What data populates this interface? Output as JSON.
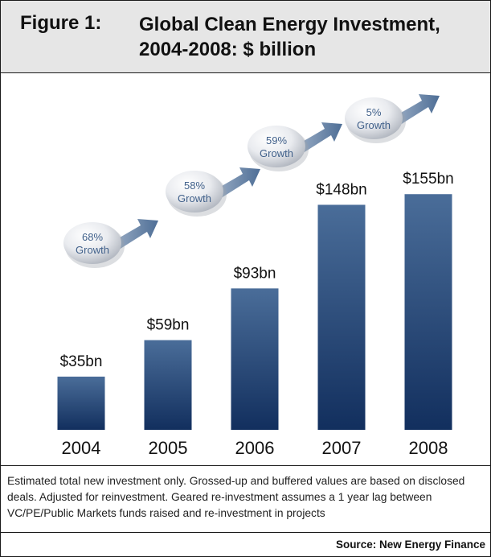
{
  "header": {
    "figure_label": "Figure 1:",
    "title": "Global Clean Energy Investment, 2004-2008: $ billion"
  },
  "chart_data": {
    "type": "bar",
    "title": "Global Clean Energy Investment, 2004-2008: $ billion",
    "categories": [
      "2004",
      "2005",
      "2006",
      "2007",
      "2008"
    ],
    "values": [
      35,
      59,
      93,
      148,
      155
    ],
    "value_labels": [
      "$35bn",
      "$59bn",
      "$93bn",
      "$148bn",
      "$155bn"
    ],
    "ylim": [
      0,
      180
    ],
    "grid": false,
    "growth_annotations": [
      {
        "value": "68%",
        "label": "Growth"
      },
      {
        "value": "58%",
        "label": "Growth"
      },
      {
        "value": "59%",
        "label": "Growth"
      },
      {
        "value": "5%",
        "label": "Growth"
      }
    ],
    "colors": {
      "bar_top": "#4a6d99",
      "bar_bottom": "#122f5e",
      "bubble_text": "#40608a",
      "arrow": "#4e6e96"
    }
  },
  "footnote": {
    "text": "Estimated total new investment only.  Grossed-up and buffered values are based on disclosed deals. Adjusted for reinvestment. Geared re-investment assumes a 1 year lag between VC/PE/Public Markets funds raised and re-investment in projects"
  },
  "source": "Source: New Energy Finance"
}
